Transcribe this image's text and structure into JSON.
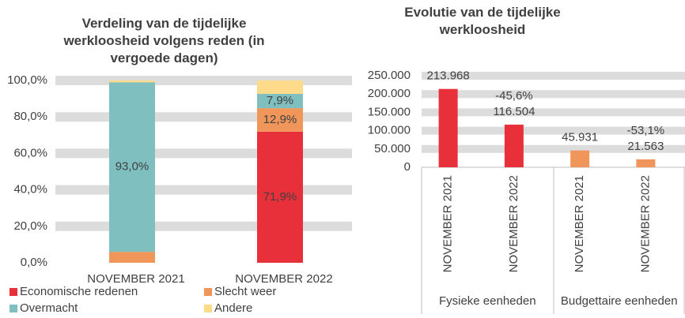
{
  "chart_data": [
    {
      "type": "stacked_bar",
      "title": "Verdeling van de tijdelijke werkloosheid volgens reden (in vergoede dagen)",
      "categories": [
        "NOVEMBER 2021",
        "NOVEMBER 2022"
      ],
      "series": [
        {
          "name": "Economische redenen",
          "color": "#e8303a",
          "values": [
            0,
            71.9
          ],
          "value_labels": [
            null,
            "71,9%"
          ]
        },
        {
          "name": "Slecht weer",
          "color": "#f0965a",
          "values": [
            6,
            12.9
          ],
          "value_labels": [
            null,
            "12,9%"
          ]
        },
        {
          "name": "Overmacht",
          "color": "#7fbfbf",
          "values": [
            93.0,
            7.9
          ],
          "value_labels": [
            "93,0%",
            "7,9%"
          ]
        },
        {
          "name": "Andere",
          "color": "#fddb8a",
          "values": [
            1,
            7.3
          ],
          "value_labels": [
            null,
            null
          ]
        }
      ],
      "ylim": [
        0,
        100
      ],
      "yticks": [
        {
          "value": 0,
          "label": "0,0%"
        },
        {
          "value": 20,
          "label": "20,0%"
        },
        {
          "value": 40,
          "label": "40,0%"
        },
        {
          "value": 60,
          "label": "60,0%"
        },
        {
          "value": 80,
          "label": "80,0%"
        },
        {
          "value": 100,
          "label": "100,0%"
        }
      ],
      "grid": true
    },
    {
      "type": "bar",
      "title": "Evolutie van de tijdelijke werkloosheid",
      "categories": [
        "NOVEMBER 2021",
        "NOVEMBER 2022",
        "NOVEMBER 2021",
        "NOVEMBER 2022"
      ],
      "groups": [
        "Fysieke eenheden",
        "Budgettaire eenheden"
      ],
      "values": [
        213968,
        116504,
        45931,
        21563
      ],
      "value_labels": [
        "213.968",
        "116.504",
        "45.931",
        "21.563"
      ],
      "change_labels": [
        null,
        "-45,6%",
        null,
        "-53,1%"
      ],
      "colors": [
        "#e8303a",
        "#e8303a",
        "#f0965a",
        "#f0965a"
      ],
      "ylim": [
        0,
        250000
      ],
      "yticks": [
        0,
        {
          "value": 50000,
          "label": "50.000"
        },
        {
          "value": 100000,
          "label": "100.000"
        },
        {
          "value": 150000,
          "label": "150.000"
        },
        {
          "value": 200000,
          "label": "200.000"
        },
        {
          "value": 250000,
          "label": "250.000"
        }
      ],
      "grid": true
    }
  ]
}
